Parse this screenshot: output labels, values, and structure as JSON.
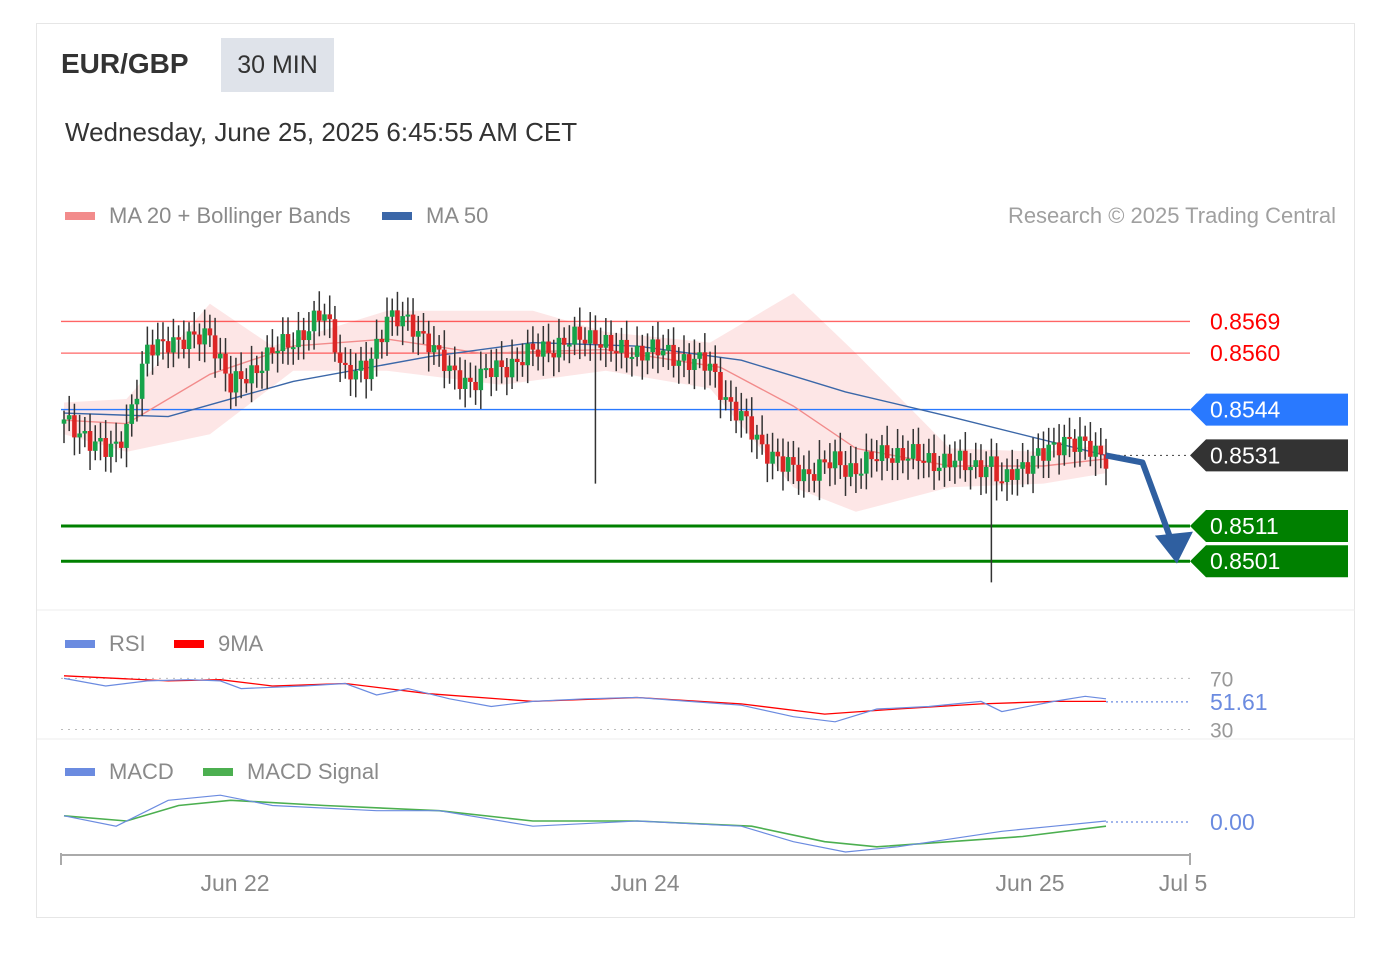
{
  "header": {
    "symbol": "EUR/GBP",
    "timeframe": "30 MIN",
    "datetime": "Wednesday, June 25, 2025 6:45:55 AM CET",
    "credit": "Research © 2025 Trading Central"
  },
  "colors": {
    "ma20": "#f28b8b",
    "band": "#fde3e3",
    "ma50": "#3b67a8",
    "resistance": "#ff0000",
    "pivot": "#2979ff",
    "support": "#008000",
    "current": "#333333",
    "rsi": "#6b8be0",
    "rsi_ma": "#ff0000",
    "macd": "#6b8be0",
    "macd_signal": "#4caf50",
    "up": "#16a34a",
    "down": "#dc2626"
  },
  "chart_data": [
    {
      "type": "candlestick",
      "panel": "price",
      "legend": [
        {
          "name": "MA 20 + Bollinger Bands",
          "color": "#f28b8b"
        },
        {
          "name": "MA 50",
          "color": "#3b67a8"
        }
      ],
      "ylim": [
        0.849,
        0.8585
      ],
      "x_ticks": [
        "Jun 22",
        "Jun 24",
        "Jun 25",
        "Jul 5"
      ],
      "levels": [
        {
          "value": 0.8569,
          "label": "0.8569",
          "kind": "resistance"
        },
        {
          "value": 0.856,
          "label": "0.8560",
          "kind": "resistance"
        },
        {
          "value": 0.8544,
          "label": "0.8544",
          "kind": "pivot"
        },
        {
          "value": 0.8531,
          "label": "0.8531",
          "kind": "current"
        },
        {
          "value": 0.8511,
          "label": "0.8511",
          "kind": "support"
        },
        {
          "value": 0.8501,
          "label": "0.8501",
          "kind": "support"
        }
      ],
      "close_path": [
        [
          0,
          0.854
        ],
        [
          4,
          0.8537
        ],
        [
          8,
          0.8532
        ],
        [
          10,
          0.8533
        ],
        [
          12,
          0.854
        ],
        [
          16,
          0.856
        ],
        [
          20,
          0.8564
        ],
        [
          24,
          0.8563
        ],
        [
          28,
          0.8566
        ],
        [
          32,
          0.855
        ],
        [
          40,
          0.856
        ],
        [
          46,
          0.8566
        ],
        [
          50,
          0.8571
        ],
        [
          54,
          0.8555
        ],
        [
          58,
          0.8554
        ],
        [
          62,
          0.8571
        ],
        [
          66,
          0.8568
        ],
        [
          70,
          0.8564
        ],
        [
          74,
          0.8554
        ],
        [
          78,
          0.8552
        ],
        [
          84,
          0.8556
        ],
        [
          90,
          0.856
        ],
        [
          96,
          0.8563
        ],
        [
          102,
          0.8565
        ],
        [
          106,
          0.856
        ],
        [
          112,
          0.8561
        ],
        [
          118,
          0.8559
        ],
        [
          124,
          0.8556
        ],
        [
          128,
          0.8545
        ],
        [
          134,
          0.8534
        ],
        [
          138,
          0.8528
        ],
        [
          142,
          0.8526
        ],
        [
          148,
          0.8529
        ],
        [
          152,
          0.8527
        ],
        [
          158,
          0.8532
        ],
        [
          164,
          0.853
        ],
        [
          170,
          0.8529
        ],
        [
          178,
          0.8528
        ],
        [
          180,
          0.8522
        ],
        [
          182,
          0.8527
        ],
        [
          188,
          0.8531
        ],
        [
          192,
          0.8536
        ],
        [
          196,
          0.8533
        ],
        [
          200,
          0.8531
        ]
      ],
      "wicks": [
        {
          "i": 102,
          "low": 0.8523
        },
        {
          "i": 178,
          "low": 0.8495
        }
      ],
      "forecast": [
        [
          200,
          0.8531
        ],
        [
          207,
          0.8529
        ],
        [
          214,
          0.8502
        ]
      ],
      "ma20": [
        [
          0,
          0.8541
        ],
        [
          12,
          0.854
        ],
        [
          28,
          0.8554
        ],
        [
          44,
          0.8562
        ],
        [
          62,
          0.8564
        ],
        [
          80,
          0.856
        ],
        [
          104,
          0.8561
        ],
        [
          126,
          0.8556
        ],
        [
          140,
          0.8545
        ],
        [
          152,
          0.8533
        ],
        [
          170,
          0.8528
        ],
        [
          188,
          0.8528
        ],
        [
          200,
          0.853
        ]
      ],
      "ma50": [
        [
          0,
          0.8543
        ],
        [
          20,
          0.8542
        ],
        [
          44,
          0.8552
        ],
        [
          70,
          0.8559
        ],
        [
          90,
          0.8563
        ],
        [
          110,
          0.8562
        ],
        [
          130,
          0.8558
        ],
        [
          150,
          0.8549
        ],
        [
          170,
          0.8542
        ],
        [
          200,
          0.8531
        ]
      ],
      "bb_upper": [
        [
          0,
          0.8546
        ],
        [
          12,
          0.8547
        ],
        [
          28,
          0.8574
        ],
        [
          40,
          0.8562
        ],
        [
          62,
          0.8572
        ],
        [
          90,
          0.8572
        ],
        [
          104,
          0.8566
        ],
        [
          124,
          0.8563
        ],
        [
          140,
          0.8577
        ],
        [
          152,
          0.856
        ],
        [
          170,
          0.8533
        ],
        [
          188,
          0.8532
        ],
        [
          200,
          0.8534
        ]
      ],
      "bb_lower": [
        [
          0,
          0.8537
        ],
        [
          12,
          0.8532
        ],
        [
          28,
          0.8537
        ],
        [
          44,
          0.8555
        ],
        [
          62,
          0.8555
        ],
        [
          84,
          0.8551
        ],
        [
          104,
          0.8555
        ],
        [
          124,
          0.855
        ],
        [
          140,
          0.8522
        ],
        [
          152,
          0.8515
        ],
        [
          170,
          0.8522
        ],
        [
          188,
          0.8523
        ],
        [
          200,
          0.8526
        ]
      ]
    },
    {
      "type": "line",
      "panel": "rsi",
      "legend": [
        {
          "name": "RSI",
          "color": "#6b8be0"
        },
        {
          "name": "9MA",
          "color": "#ff0000"
        }
      ],
      "ylim": [
        28,
        75
      ],
      "ticks": [
        {
          "value": 70,
          "label": "70"
        },
        {
          "value": 30,
          "label": "30"
        }
      ],
      "last_value": 51.61,
      "last_label": "51.61",
      "series": [
        {
          "name": "RSI",
          "values": [
            [
              0,
              70
            ],
            [
              8,
              64
            ],
            [
              16,
              68
            ],
            [
              24,
              69
            ],
            [
              30,
              68
            ],
            [
              34,
              62
            ],
            [
              46,
              64
            ],
            [
              54,
              66
            ],
            [
              60,
              57
            ],
            [
              66,
              62
            ],
            [
              74,
              54
            ],
            [
              82,
              48
            ],
            [
              90,
              52
            ],
            [
              100,
              54
            ],
            [
              110,
              55
            ],
            [
              120,
              52
            ],
            [
              130,
              49
            ],
            [
              140,
              40
            ],
            [
              148,
              36
            ],
            [
              156,
              46
            ],
            [
              166,
              48
            ],
            [
              176,
              52
            ],
            [
              180,
              44
            ],
            [
              190,
              52
            ],
            [
              196,
              56
            ],
            [
              200,
              54
            ]
          ]
        },
        {
          "name": "9MA",
          "values": [
            [
              0,
              72
            ],
            [
              20,
              68
            ],
            [
              30,
              69
            ],
            [
              40,
              64
            ],
            [
              54,
              66
            ],
            [
              70,
              58
            ],
            [
              90,
              52
            ],
            [
              110,
              55
            ],
            [
              130,
              50
            ],
            [
              146,
              42
            ],
            [
              160,
              46
            ],
            [
              176,
              50
            ],
            [
              190,
              52
            ],
            [
              200,
              52
            ]
          ]
        }
      ]
    },
    {
      "type": "line",
      "panel": "macd",
      "legend": [
        {
          "name": "MACD",
          "color": "#6b8be0"
        },
        {
          "name": "MACD Signal",
          "color": "#4caf50"
        }
      ],
      "ylim": [
        -0.0006,
        0.0006
      ],
      "last_value": 0.0,
      "last_label": "0.00",
      "series": [
        {
          "name": "MACD",
          "values": [
            [
              0,
              0.0001
            ],
            [
              10,
              -0.0001
            ],
            [
              20,
              0.0004
            ],
            [
              30,
              0.0005
            ],
            [
              40,
              0.0003
            ],
            [
              60,
              0.0002
            ],
            [
              72,
              0.0002
            ],
            [
              90,
              -0.0001
            ],
            [
              110,
              0.0
            ],
            [
              130,
              -0.0001
            ],
            [
              140,
              -0.0004
            ],
            [
              150,
              -0.0006
            ],
            [
              160,
              -0.0005
            ],
            [
              180,
              -0.0002
            ],
            [
              190,
              -0.0001
            ],
            [
              200,
              0.0
            ]
          ]
        },
        {
          "name": "MACD Signal",
          "values": [
            [
              0,
              0.0001
            ],
            [
              12,
              0.0
            ],
            [
              22,
              0.0003
            ],
            [
              32,
              0.0004
            ],
            [
              50,
              0.0003
            ],
            [
              72,
              0.0002
            ],
            [
              90,
              0.0
            ],
            [
              110,
              0.0
            ],
            [
              132,
              -0.0001
            ],
            [
              146,
              -0.0004
            ],
            [
              156,
              -0.0005
            ],
            [
              170,
              -0.0004
            ],
            [
              184,
              -0.0003
            ],
            [
              200,
              -0.0001
            ]
          ]
        }
      ]
    }
  ]
}
